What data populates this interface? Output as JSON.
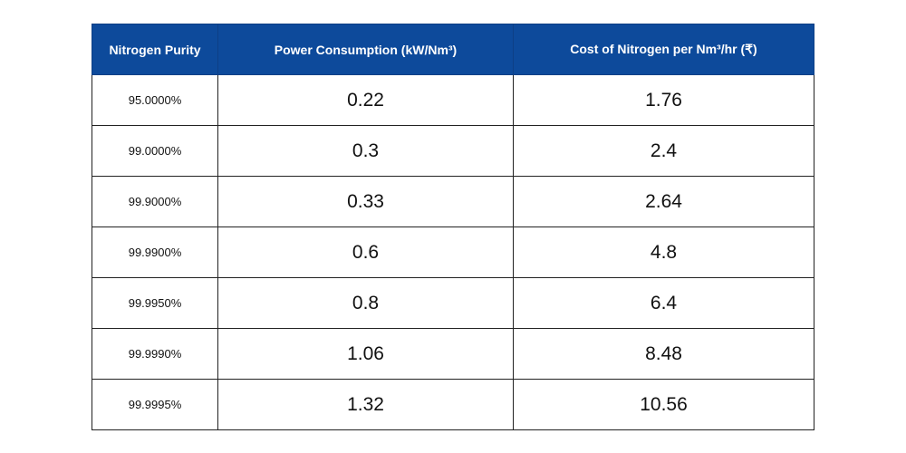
{
  "chart_data": {
    "type": "table",
    "columns": [
      "Nitrogen Purity",
      "Power Consumption (kW/Nm³)",
      "Cost of Nitrogen per Nm³/hr (₹)"
    ],
    "rows": [
      [
        "95.0000%",
        "0.22",
        "1.76"
      ],
      [
        "99.0000%",
        "0.3",
        "2.4"
      ],
      [
        "99.9000%",
        "0.33",
        "2.64"
      ],
      [
        "99.9900%",
        "0.6",
        "4.8"
      ],
      [
        "99.9950%",
        "0.8",
        "6.4"
      ],
      [
        "99.9990%",
        "1.06",
        "8.48"
      ],
      [
        "99.9995%",
        "1.32",
        "10.56"
      ]
    ]
  },
  "colors": {
    "header_background": "#0d4a9b",
    "header_text": "#ffffff"
  }
}
